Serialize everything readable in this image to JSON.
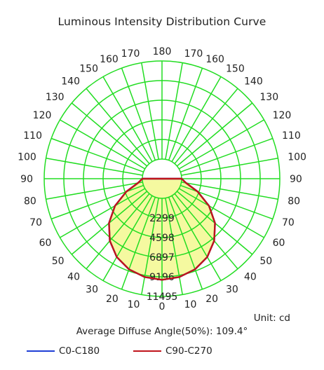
{
  "chart_data": {
    "type": "polar",
    "title": "Luminous Intensity Distribution Curve",
    "unit_label": "Unit: cd",
    "beam_angle_label": "Average Diffuse Angle(50%): 109.4°",
    "radial_ticks": [
      2299,
      4598,
      6897,
      9196,
      11495
    ],
    "radial_max": 11495,
    "angle_labels_left": [
      "0",
      "10",
      "20",
      "30",
      "40",
      "50",
      "60",
      "70",
      "80",
      "90",
      "100",
      "110",
      "120",
      "130",
      "140",
      "150",
      "160",
      "170",
      "180"
    ],
    "angle_labels_right": [
      "10",
      "20",
      "30",
      "40",
      "50",
      "60",
      "70",
      "80",
      "90",
      "100",
      "110",
      "120",
      "130",
      "140",
      "150",
      "160",
      "170"
    ],
    "grid": true,
    "colors": {
      "grid": "#22dd22",
      "fill": "#f5f9a0",
      "c0": "#1f3fd6",
      "c90": "#c0141b"
    },
    "series": [
      {
        "name": "C0-C180",
        "color": "#1f3fd6",
        "angles": [
          0,
          10,
          20,
          30,
          40,
          50,
          60,
          70,
          80,
          90
        ],
        "values": [
          9550,
          9400,
          9000,
          8300,
          7200,
          5800,
          4050,
          2150,
          550,
          0
        ]
      },
      {
        "name": "C90-C270",
        "color": "#c0141b",
        "angles": [
          0,
          10,
          20,
          30,
          40,
          50,
          60,
          70,
          80,
          90
        ],
        "values": [
          9550,
          9400,
          9000,
          8300,
          7200,
          5800,
          4050,
          2150,
          550,
          0
        ]
      }
    ],
    "legend": [
      "C0-C180",
      "C90-C270"
    ]
  }
}
